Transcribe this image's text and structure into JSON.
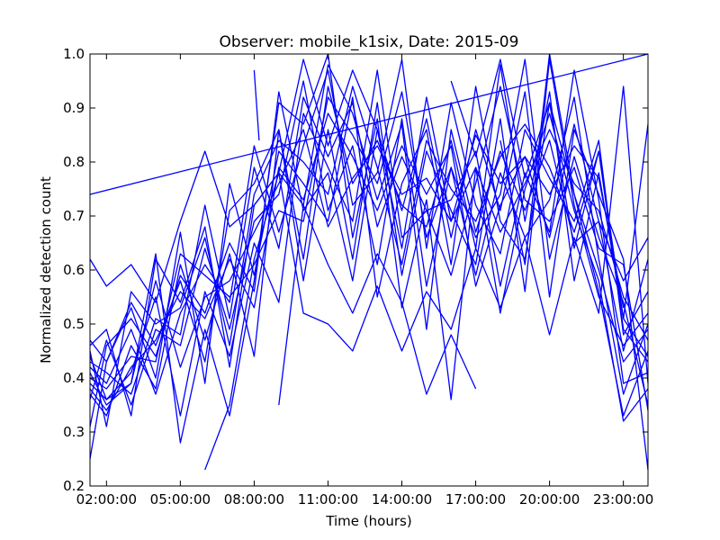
{
  "chart_data": {
    "type": "line",
    "title": "Observer: mobile_k1six, Date: 2015-09",
    "xlabel": "Time (hours)",
    "ylabel": "Normalized detection count",
    "xlim": [
      1.33,
      24.0
    ],
    "ylim": [
      0.2,
      1.0
    ],
    "x_tick_values": [
      2,
      5,
      8,
      11,
      14,
      17,
      20,
      23
    ],
    "x_tick_labels": [
      "02:00:00",
      "05:00:00",
      "08:00:00",
      "11:00:00",
      "14:00:00",
      "17:00:00",
      "20:00:00",
      "23:00:00"
    ],
    "y_tick_values": [
      0.2,
      0.3,
      0.4,
      0.5,
      0.6,
      0.7,
      0.8,
      0.9,
      1.0
    ],
    "y_tick_labels": [
      "0.2",
      "0.3",
      "0.4",
      "0.5",
      "0.6",
      "0.7",
      "0.8",
      "0.9",
      "1.0"
    ],
    "grid": false,
    "legend": "none",
    "line_color": "#0000ff",
    "series": [
      {
        "x": [
          1.33,
          24.0
        ],
        "y": [
          0.74,
          1.0
        ]
      },
      {
        "x": [
          1.33,
          2,
          3,
          4,
          5,
          6,
          7,
          8,
          9,
          10,
          11,
          12,
          13,
          14,
          15,
          16,
          17,
          18,
          19,
          20,
          21,
          22,
          23,
          24
        ],
        "y": [
          0.62,
          0.57,
          0.61,
          0.54,
          0.69,
          0.82,
          0.68,
          0.72,
          0.78,
          0.99,
          0.83,
          0.97,
          0.86,
          0.64,
          0.92,
          0.69,
          0.85,
          0.76,
          0.81,
          0.66,
          0.87,
          0.69,
          0.45,
          0.62
        ]
      },
      {
        "x": [
          1.33,
          2,
          3,
          4,
          5,
          6,
          7,
          8,
          9,
          10,
          11,
          12,
          13,
          14,
          15,
          16,
          17,
          18,
          19,
          20,
          21,
          22,
          23,
          24
        ],
        "y": [
          0.41,
          0.35,
          0.39,
          0.63,
          0.28,
          0.49,
          0.33,
          0.58,
          0.91,
          0.87,
          1.0,
          0.66,
          0.88,
          0.53,
          0.73,
          0.36,
          0.79,
          0.52,
          0.75,
          0.89,
          0.71,
          0.58,
          0.32,
          0.38
        ]
      },
      {
        "x": [
          1.33,
          2,
          3,
          4,
          5,
          6,
          7,
          8,
          9,
          10,
          11,
          12,
          13,
          14,
          15,
          16,
          17,
          18,
          19,
          20,
          21,
          22,
          23,
          24
        ],
        "y": [
          0.47,
          0.43,
          0.54,
          0.46,
          0.58,
          0.43,
          0.71,
          0.76,
          0.86,
          0.62,
          0.94,
          0.76,
          0.84,
          0.72,
          0.68,
          0.84,
          0.64,
          0.98,
          0.69,
          0.93,
          0.58,
          0.78,
          0.51,
          0.44
        ]
      },
      {
        "x": [
          1.33,
          2,
          3,
          4,
          5,
          6,
          7,
          8,
          9,
          10,
          11,
          12,
          13,
          14,
          15,
          16,
          17,
          18,
          19,
          20,
          21,
          22,
          23,
          24
        ],
        "y": [
          0.36,
          0.47,
          0.35,
          0.49,
          0.46,
          0.64,
          0.49,
          0.69,
          0.74,
          0.95,
          0.71,
          0.83,
          0.61,
          0.88,
          0.57,
          0.79,
          0.66,
          0.74,
          0.99,
          0.62,
          0.81,
          0.66,
          0.54,
          0.35
        ]
      },
      {
        "x": [
          1.33,
          2,
          3,
          4,
          5,
          6,
          7,
          8,
          9,
          10,
          11,
          12,
          13,
          14,
          15,
          16,
          17,
          18,
          19,
          20,
          21,
          22,
          23,
          24
        ],
        "y": [
          0.42,
          0.39,
          0.49,
          0.37,
          0.52,
          0.61,
          0.54,
          0.83,
          0.67,
          0.83,
          0.97,
          0.72,
          0.78,
          0.99,
          0.64,
          0.91,
          0.72,
          0.63,
          0.86,
          0.77,
          0.69,
          0.84,
          0.48,
          0.56
        ]
      },
      {
        "x": [
          1.33,
          2,
          3,
          4,
          5,
          6,
          7,
          8,
          9,
          10,
          11,
          12,
          13,
          14,
          15,
          16,
          17,
          18,
          19,
          20,
          21,
          22,
          23,
          24
        ],
        "y": [
          0.25,
          0.43,
          0.53,
          0.4,
          0.67,
          0.39,
          0.76,
          0.59,
          0.82,
          0.76,
          0.69,
          0.92,
          0.55,
          0.76,
          0.86,
          0.61,
          0.94,
          0.69,
          0.62,
          0.91,
          0.74,
          0.6,
          0.43,
          0.49
        ]
      },
      {
        "x": [
          1.33,
          2,
          3,
          4,
          5,
          6,
          7,
          8,
          9,
          10,
          11,
          12,
          13,
          14,
          15,
          16,
          17,
          18,
          19,
          20,
          21,
          22,
          23,
          24
        ],
        "y": [
          0.39,
          0.36,
          0.41,
          0.55,
          0.33,
          0.56,
          0.44,
          0.65,
          0.54,
          0.89,
          0.79,
          0.69,
          0.97,
          0.66,
          0.71,
          0.73,
          0.82,
          0.57,
          0.78,
          0.67,
          0.97,
          0.73,
          0.39,
          0.41
        ]
      },
      {
        "x": [
          1.33,
          2,
          3,
          4,
          5,
          6,
          7,
          8,
          9,
          10,
          11,
          12,
          13,
          14,
          15,
          16,
          17,
          18,
          19,
          20,
          21,
          22,
          23,
          24
        ],
        "y": [
          0.46,
          0.49,
          0.33,
          0.62,
          0.54,
          0.68,
          0.42,
          0.72,
          0.78,
          0.72,
          0.98,
          0.89,
          0.73,
          0.87,
          0.49,
          0.86,
          0.67,
          0.82,
          0.71,
          0.84,
          0.65,
          0.69,
          0.58,
          0.66
        ]
      },
      {
        "x": [
          1.33,
          2,
          3,
          4,
          5,
          6,
          7,
          8,
          9,
          10,
          11,
          12,
          13,
          14,
          15,
          16,
          17,
          18,
          19,
          20,
          21,
          22,
          23,
          24
        ],
        "y": [
          0.37,
          0.33,
          0.46,
          0.38,
          0.61,
          0.47,
          0.63,
          0.44,
          0.86,
          0.58,
          0.86,
          0.62,
          0.91,
          0.59,
          0.82,
          0.71,
          0.61,
          0.88,
          0.56,
          0.99,
          0.72,
          0.55,
          0.46,
          0.52
        ]
      },
      {
        "x": [
          1.33,
          2,
          3,
          4,
          5,
          6,
          7,
          8,
          9,
          10,
          11,
          12,
          13,
          14,
          15,
          16,
          17,
          18,
          19,
          20,
          21,
          22,
          23,
          24
        ],
        "y": [
          0.43,
          0.41,
          0.37,
          0.51,
          0.48,
          0.72,
          0.51,
          0.79,
          0.64,
          0.92,
          0.81,
          0.91,
          0.68,
          0.81,
          0.71,
          0.59,
          0.76,
          0.94,
          0.73,
          0.69,
          0.79,
          0.64,
          0.61,
          0.34
        ]
      },
      {
        "x": [
          1.33,
          2,
          3,
          4,
          5,
          6,
          7,
          8,
          9,
          10,
          11,
          12,
          13,
          14,
          15,
          16,
          17,
          18,
          19,
          20,
          21,
          22,
          23,
          24
        ],
        "y": [
          0.31,
          0.46,
          0.51,
          0.44,
          0.59,
          0.52,
          0.65,
          0.56,
          0.93,
          0.71,
          0.78,
          0.58,
          0.86,
          0.71,
          0.88,
          0.66,
          0.86,
          0.71,
          0.93,
          0.55,
          0.86,
          0.74,
          0.62,
          0.23
        ]
      },
      {
        "x": [
          1.33,
          2,
          3,
          4,
          5,
          6,
          7,
          8,
          9,
          10,
          11,
          12,
          13,
          14,
          15,
          16,
          17,
          18,
          19,
          20,
          21,
          22,
          23,
          24
        ],
        "y": [
          0.4,
          0.38,
          0.44,
          0.43,
          0.63,
          0.59,
          0.55,
          0.61,
          0.71,
          0.69,
          0.92,
          0.85,
          0.76,
          0.93,
          0.66,
          0.79,
          0.59,
          0.78,
          0.66,
          0.73,
          0.92,
          0.62,
          0.37,
          0.5
        ]
      },
      {
        "x": [
          1.33,
          2,
          3,
          4,
          5,
          6,
          7,
          8,
          9,
          10,
          11,
          12,
          13,
          14,
          15,
          16,
          17,
          18,
          19,
          20,
          21,
          22,
          23,
          24
        ],
        "y": [
          0.45,
          0.31,
          0.56,
          0.5,
          0.53,
          0.66,
          0.46,
          0.74,
          0.84,
          0.8,
          0.74,
          0.94,
          0.79,
          0.61,
          0.84,
          0.75,
          0.69,
          0.81,
          0.87,
          0.79,
          0.67,
          0.82,
          0.49,
          0.43
        ]
      },
      {
        "x": [
          1.33,
          2,
          3,
          4,
          5,
          6,
          7,
          8,
          9,
          10,
          11,
          12,
          13,
          14,
          15,
          16,
          17,
          18,
          19,
          20,
          21,
          22,
          23,
          24
        ],
        "y": [
          0.44,
          0.36,
          0.39,
          0.58,
          0.42,
          0.55,
          0.58,
          0.67,
          0.76,
          0.86,
          0.68,
          0.77,
          0.83,
          0.74,
          0.77,
          0.69,
          0.79,
          0.67,
          0.76,
          0.86,
          0.76,
          0.71,
          0.55,
          0.47
        ]
      },
      {
        "x": [
          1.33,
          2,
          3,
          4,
          5,
          6,
          7,
          8,
          9,
          10,
          11,
          12,
          13,
          14,
          15,
          16,
          17,
          18,
          19,
          20,
          21,
          22,
          23
        ],
        "y": [
          0.38,
          0.34,
          0.42,
          0.47,
          0.56,
          0.51,
          0.62,
          0.53,
          0.79,
          0.73,
          0.89,
          0.81,
          0.71,
          0.83,
          0.74,
          0.83,
          0.57,
          0.72,
          0.81,
          0.74,
          0.83,
          0.77,
          0.53
        ]
      },
      {
        "x": [
          8,
          8.2
        ],
        "y": [
          0.97,
          0.84
        ]
      },
      {
        "x": [
          6,
          7,
          8,
          9,
          10,
          11,
          12,
          13,
          14,
          15,
          16,
          17,
          18,
          19,
          20,
          21,
          22,
          23,
          24
        ],
        "y": [
          0.23,
          0.35,
          0.62,
          0.78,
          0.52,
          0.5,
          0.45,
          0.57,
          0.45,
          0.56,
          0.49,
          0.64,
          0.53,
          0.66,
          0.48,
          0.66,
          0.52,
          0.94,
          0.39
        ]
      },
      {
        "x": [
          9,
          10,
          11,
          12,
          13,
          14,
          15,
          16,
          17
        ],
        "y": [
          0.35,
          0.72,
          0.61,
          0.52,
          0.63,
          0.54,
          0.37,
          0.48,
          0.38
        ]
      },
      {
        "x": [
          16,
          17,
          18,
          19,
          20,
          21,
          22,
          23,
          24
        ],
        "y": [
          0.95,
          0.81,
          0.99,
          0.77,
          0.91,
          0.64,
          0.82,
          0.51,
          0.87
        ]
      },
      {
        "x": [
          18,
          19,
          20,
          21,
          22,
          23,
          24
        ],
        "y": [
          0.84,
          0.61,
          1.0,
          0.74,
          0.56,
          0.33,
          0.45
        ]
      }
    ]
  }
}
